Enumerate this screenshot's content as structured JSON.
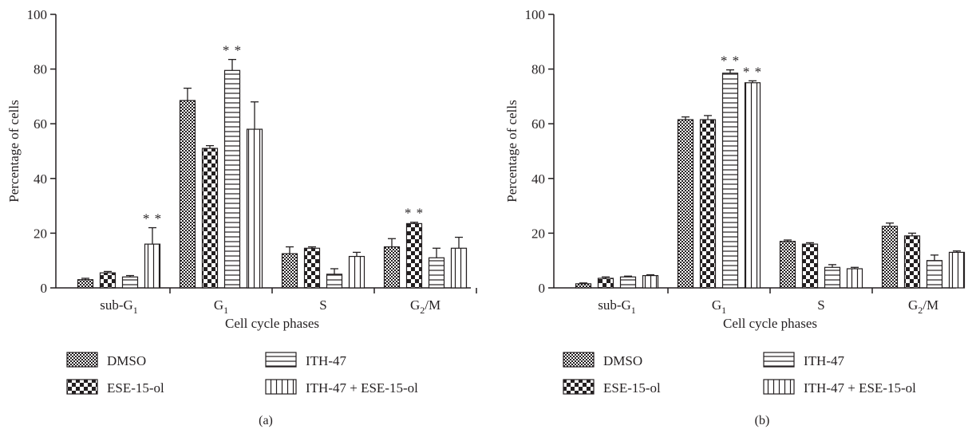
{
  "figure": {
    "panels": [
      "(a)",
      "(b)"
    ],
    "significance_mark": "* *",
    "legend": [
      {
        "name": "DMSO",
        "pattern": "dots"
      },
      {
        "name": "ITH-47",
        "pattern": "hlines"
      },
      {
        "name": "ESE-15-ol",
        "pattern": "checker"
      },
      {
        "name": "ITH-47 + ESE-15-ol",
        "pattern": "vlines"
      }
    ]
  },
  "chart_data": [
    {
      "type": "bar",
      "panel_label": "(a)",
      "xlabel": "Cell cycle phases",
      "ylabel": "Percentage of cells",
      "ylim": [
        0,
        100
      ],
      "yticks": [
        0,
        20,
        40,
        60,
        80,
        100
      ],
      "categories": [
        "sub-G1",
        "G1",
        "S",
        "G2/M"
      ],
      "series": [
        {
          "name": "DMSO",
          "pattern": "dots",
          "values": [
            3,
            68.5,
            12.5,
            15
          ],
          "errors": [
            0.5,
            4.5,
            2.5,
            3
          ]
        },
        {
          "name": "ESE-15-ol",
          "pattern": "checker",
          "values": [
            5.5,
            51,
            14.5,
            23.5
          ],
          "errors": [
            0.5,
            1,
            0.5,
            0.5
          ]
        },
        {
          "name": "ITH-47",
          "pattern": "hlines",
          "values": [
            4,
            79.5,
            5,
            11
          ],
          "errors": [
            0.5,
            4,
            2,
            3.5
          ]
        },
        {
          "name": "ITH-47 + ESE-15-ol",
          "pattern": "vlines",
          "values": [
            16,
            58,
            11.5,
            14.5
          ],
          "errors": [
            6,
            10,
            1.5,
            4
          ]
        }
      ],
      "significance": [
        {
          "category": "sub-G1",
          "series": "ITH-47 + ESE-15-ol"
        },
        {
          "category": "G1",
          "series": "ITH-47"
        },
        {
          "category": "G2/M",
          "series": "ESE-15-ol"
        }
      ]
    },
    {
      "type": "bar",
      "panel_label": "(b)",
      "xlabel": "Cell cycle phases",
      "ylabel": "Percentage of cells",
      "ylim": [
        0,
        100
      ],
      "yticks": [
        0,
        20,
        40,
        60,
        80,
        100
      ],
      "categories": [
        "sub-G1",
        "G1",
        "S",
        "G2/M"
      ],
      "series": [
        {
          "name": "DMSO",
          "pattern": "dots",
          "values": [
            1.5,
            61.5,
            17,
            22.5
          ],
          "errors": [
            0.3,
            1,
            0.5,
            1.2
          ]
        },
        {
          "name": "ESE-15-ol",
          "pattern": "checker",
          "values": [
            3.5,
            61.5,
            16,
            19
          ],
          "errors": [
            0.5,
            1.5,
            0.5,
            1
          ]
        },
        {
          "name": "ITH-47",
          "pattern": "hlines",
          "values": [
            4,
            78.5,
            7.5,
            10
          ],
          "errors": [
            0.3,
            1.2,
            1,
            2
          ]
        },
        {
          "name": "ITH-47 + ESE-15-ol",
          "pattern": "vlines",
          "values": [
            4.5,
            75,
            7,
            13
          ],
          "errors": [
            0.3,
            0.7,
            0.5,
            0.5
          ]
        }
      ],
      "significance": [
        {
          "category": "G1",
          "series": "ITH-47"
        },
        {
          "category": "G1",
          "series": "ITH-47 + ESE-15-ol"
        }
      ]
    }
  ]
}
